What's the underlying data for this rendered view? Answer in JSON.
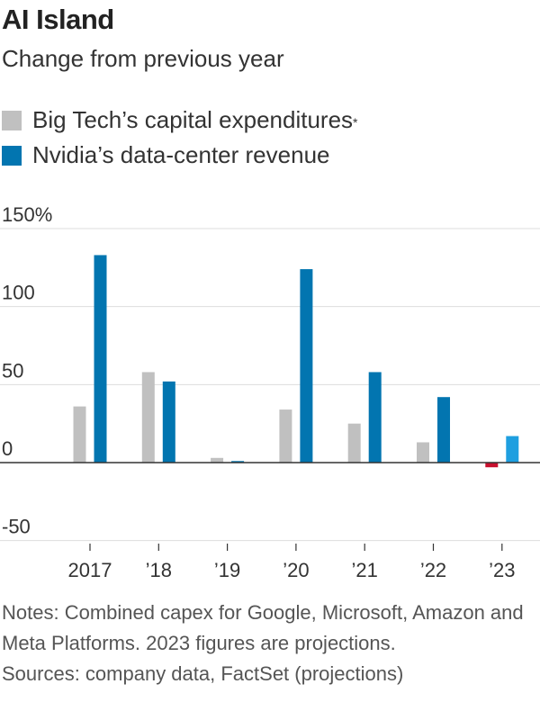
{
  "title": "AI Island",
  "subtitle": "Change from previous year",
  "legend": {
    "capex": "Big Tech’s capital expenditures",
    "capex_marker": "*",
    "nvidia": "Nvidia’s data-center revenue"
  },
  "colors": {
    "capex": "#c0c0c0",
    "nvidia": "#0275b0",
    "nvidia_projection": "#1e9fe0",
    "negative": "#c8102e",
    "gridline": "#dddddd",
    "zero_line": "#333333"
  },
  "notes": {
    "line1": "Notes: Combined capex for Google, Microsoft, Amazon and Meta Platforms. 2023 figures are projections.",
    "line2": "Sources: company data, FactSet (projections)"
  },
  "chart_data": {
    "type": "bar",
    "categories": [
      "2017",
      "’18",
      "’19",
      "’20",
      "’21",
      "’22",
      "’23"
    ],
    "series": [
      {
        "name": "Big Tech’s capital expenditures",
        "values": [
          36,
          58,
          3,
          34,
          25,
          13,
          -3
        ]
      },
      {
        "name": "Nvidia’s data-center revenue",
        "values": [
          133,
          52,
          1,
          124,
          58,
          42,
          17
        ]
      }
    ],
    "yticks": [
      "150%",
      "100",
      "50",
      "0",
      "-50"
    ],
    "ytick_values": [
      150,
      100,
      50,
      0,
      -50
    ],
    "ylim": [
      -50,
      150
    ],
    "grid": true,
    "legend_position": "top-left"
  }
}
